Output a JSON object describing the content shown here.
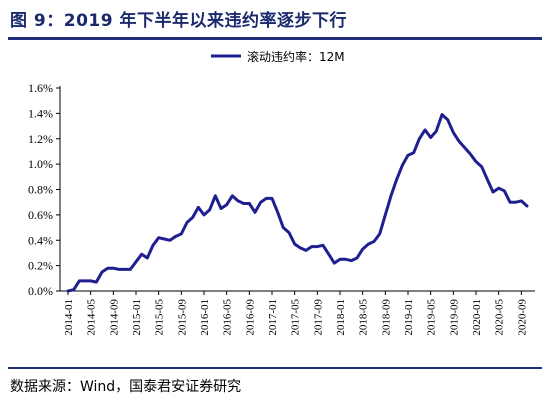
{
  "figure": {
    "title": "图 9：2019 年下半年以来违约率逐步下行",
    "source": "数据来源：Wind，国泰君安证券研究"
  },
  "chart_data": {
    "type": "line",
    "title": "图 9：2019 年下半年以来违约率逐步下行",
    "xlabel": "",
    "ylabel": "",
    "ylim": [
      0,
      1.6
    ],
    "yticks": [
      "0.0%",
      "0.2%",
      "0.4%",
      "0.6%",
      "0.8%",
      "1.0%",
      "1.2%",
      "1.4%",
      "1.6%"
    ],
    "xticks": [
      "2014-01",
      "2014-05",
      "2014-09",
      "2015-01",
      "2015-05",
      "2015-09",
      "2016-01",
      "2016-05",
      "2016-09",
      "2017-01",
      "2017-05",
      "2017-09",
      "2018-01",
      "2018-05",
      "2018-09",
      "2019-01",
      "2019-05",
      "2019-09",
      "2020-01",
      "2020-05",
      "2020-09"
    ],
    "legend_position": "top-center",
    "grid": false,
    "series": [
      {
        "name": "滚动违约率：12M",
        "color": "#1f1f8f",
        "x": [
          "2014-01",
          "2014-02",
          "2014-03",
          "2014-04",
          "2014-05",
          "2014-06",
          "2014-07",
          "2014-08",
          "2014-09",
          "2014-10",
          "2014-11",
          "2014-12",
          "2015-01",
          "2015-02",
          "2015-03",
          "2015-04",
          "2015-05",
          "2015-06",
          "2015-07",
          "2015-08",
          "2015-09",
          "2015-10",
          "2015-11",
          "2015-12",
          "2016-01",
          "2016-02",
          "2016-03",
          "2016-04",
          "2016-05",
          "2016-06",
          "2016-07",
          "2016-08",
          "2016-09",
          "2016-10",
          "2016-11",
          "2016-12",
          "2017-01",
          "2017-02",
          "2017-03",
          "2017-04",
          "2017-05",
          "2017-06",
          "2017-07",
          "2017-08",
          "2017-09",
          "2017-10",
          "2017-11",
          "2017-12",
          "2018-01",
          "2018-02",
          "2018-03",
          "2018-04",
          "2018-05",
          "2018-06",
          "2018-07",
          "2018-08",
          "2018-09",
          "2018-10",
          "2018-11",
          "2018-12",
          "2019-01",
          "2019-02",
          "2019-03",
          "2019-04",
          "2019-05",
          "2019-06",
          "2019-07",
          "2019-08",
          "2019-09",
          "2019-10",
          "2019-11",
          "2019-12",
          "2020-01",
          "2020-02",
          "2020-03",
          "2020-04",
          "2020-05",
          "2020-06",
          "2020-07",
          "2020-08",
          "2020-09",
          "2020-10"
        ],
        "values": [
          0.0,
          0.01,
          0.08,
          0.08,
          0.08,
          0.07,
          0.15,
          0.18,
          0.18,
          0.17,
          0.17,
          0.17,
          0.23,
          0.29,
          0.26,
          0.36,
          0.42,
          0.41,
          0.4,
          0.43,
          0.45,
          0.54,
          0.58,
          0.66,
          0.6,
          0.64,
          0.75,
          0.65,
          0.68,
          0.75,
          0.71,
          0.69,
          0.69,
          0.62,
          0.7,
          0.73,
          0.73,
          0.62,
          0.5,
          0.46,
          0.37,
          0.34,
          0.32,
          0.35,
          0.35,
          0.36,
          0.29,
          0.22,
          0.25,
          0.25,
          0.24,
          0.26,
          0.33,
          0.37,
          0.39,
          0.45,
          0.6,
          0.75,
          0.88,
          0.99,
          1.07,
          1.09,
          1.2,
          1.27,
          1.21,
          1.26,
          1.39,
          1.35,
          1.25,
          1.18,
          1.13,
          1.08,
          1.02,
          0.98,
          0.88,
          0.78,
          0.81,
          0.79,
          0.7,
          0.7,
          0.71,
          0.67
        ]
      }
    ]
  }
}
